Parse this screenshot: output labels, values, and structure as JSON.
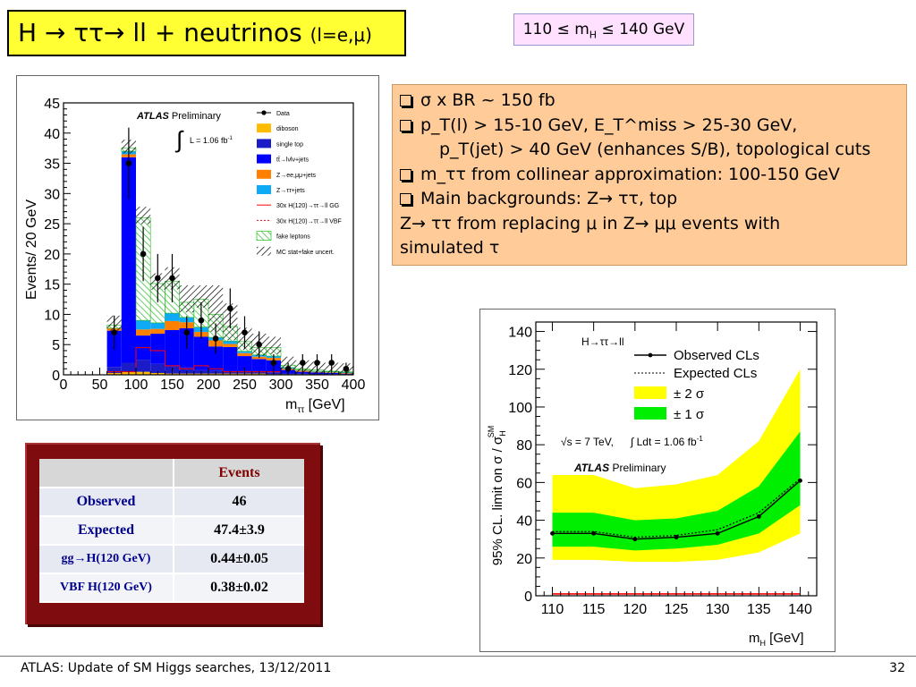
{
  "title": {
    "main": "H → ττ→ ll + neutrinos",
    "paren": "(l=e,μ)"
  },
  "mass_range": {
    "left": "110 ≤ m",
    "sub": "H",
    "right": " ≤ 140 GeV"
  },
  "notes": {
    "line1": "σ x BR ~ 150 fb",
    "line2": "p_T(l) > 15-10 GeV, E_T^miss > 25-30 GeV,",
    "line3": "p_T(jet) > 40 GeV (enhances S/B), topological cuts",
    "line4": "m_ττ from collinear approximation: 100-150 GeV",
    "line5": "Main backgrounds: Z→ ττ, top",
    "line6": "Z→ ττ from replacing μ in Z→ μμ events with",
    "line7": "simulated τ"
  },
  "table": {
    "header": "Events",
    "rows": [
      {
        "label": "Observed",
        "value": "46"
      },
      {
        "label": "Expected",
        "value": "47.4±3.9"
      },
      {
        "label": "gg→H(120 GeV)",
        "value": "0.44±0.05"
      },
      {
        "label": "VBF H(120 GeV)",
        "value": "0.38±0.02"
      }
    ]
  },
  "footer": {
    "left": "ATLAS: Update of SM Higgs searches, 13/12/2011",
    "page": "32"
  },
  "chart_data": [
    {
      "type": "bar",
      "stacked": true,
      "atlas": "ATLAS",
      "atlas_tag": "Preliminary",
      "lumi": "L = 1.06 fb",
      "lumi_exp": "-1",
      "xlabel": "m",
      "xlabel_sub": "ττ",
      "xlabel_unit": " [GeV]",
      "ylabel": "Events/ 20 GeV",
      "xlim": [
        0,
        400
      ],
      "ylim": [
        0,
        45
      ],
      "x_ticks": [
        0,
        50,
        100,
        150,
        200,
        250,
        300,
        350,
        400
      ],
      "y_ticks": [
        0,
        5,
        10,
        15,
        20,
        25,
        30,
        35,
        40,
        45
      ],
      "bin_width": 20,
      "bins": [
        {
          "x0": 60,
          "x1": 80,
          "bkg": [
            0.3,
            1.0,
            6.0,
            0.4,
            0.0,
            0.5
          ],
          "total": 9.0
        },
        {
          "x0": 80,
          "x1": 100,
          "bkg": [
            0.5,
            1.5,
            34.0,
            0.5,
            0.5,
            0.5
          ],
          "total": 37.0
        },
        {
          "x0": 100,
          "x1": 120,
          "bkg": [
            0.5,
            2.0,
            4.0,
            1.0,
            1.5,
            17.0
          ],
          "total": 27.0
        },
        {
          "x0": 120,
          "x1": 140,
          "bkg": [
            0.3,
            1.5,
            5.0,
            0.8,
            1.0,
            6.5
          ],
          "total": 16.0
        },
        {
          "x0": 140,
          "x1": 160,
          "bkg": [
            0.2,
            1.2,
            6.0,
            1.5,
            1.3,
            5.3
          ],
          "total": 17.0
        },
        {
          "x0": 160,
          "x1": 180,
          "bkg": [
            0.2,
            1.0,
            6.5,
            1.0,
            0.8,
            2.5
          ],
          "total": 14.0
        },
        {
          "x0": 180,
          "x1": 200,
          "bkg": [
            0.2,
            0.6,
            5.5,
            0.8,
            0.8,
            4.6
          ],
          "total": 14.0
        },
        {
          "x0": 200,
          "x1": 220,
          "bkg": [
            0.2,
            0.5,
            4.0,
            1.0,
            0.5,
            3.8
          ],
          "total": 14.0
        },
        {
          "x0": 220,
          "x1": 240,
          "bkg": [
            0.2,
            0.4,
            4.0,
            0.5,
            0.5,
            2.4
          ],
          "total": 11.0
        },
        {
          "x0": 240,
          "x1": 260,
          "bkg": [
            0.2,
            0.4,
            2.5,
            0.5,
            0.3,
            1.6
          ],
          "total": 7.0
        },
        {
          "x0": 260,
          "x1": 280,
          "bkg": [
            0.2,
            0.4,
            2.0,
            0.4,
            0.3,
            1.2
          ],
          "total": 6.0
        },
        {
          "x0": 280,
          "x1": 300,
          "bkg": [
            0.1,
            0.3,
            2.0,
            0.4,
            0.3,
            1.4
          ],
          "total": 5.5
        },
        {
          "x0": 300,
          "x1": 320,
          "bkg": [
            0.1,
            0.2,
            0.5,
            0.2,
            0.2,
            0.4
          ],
          "total": 2.0
        },
        {
          "x0": 320,
          "x1": 340,
          "bkg": [
            0.1,
            0.1,
            0.3,
            0.2,
            0.1,
            0.2
          ],
          "total": 1.2
        },
        {
          "x0": 340,
          "x1": 360,
          "bkg": [
            0.0,
            0.1,
            0.3,
            0.1,
            0.1,
            0.2
          ],
          "total": 1.0
        },
        {
          "x0": 360,
          "x1": 380,
          "bkg": [
            0.0,
            0.1,
            0.2,
            0.1,
            0.1,
            0.1
          ],
          "total": 0.8
        },
        {
          "x0": 380,
          "x1": 400,
          "bkg": [
            0.0,
            0.1,
            0.1,
            0.1,
            0.1,
            0.1
          ],
          "total": 0.6
        }
      ],
      "bkg_names": [
        "diboson",
        "single top",
        "tt̄→lνlν+jets",
        "Z→ee,μμ+jets",
        "Z→ττ+jets",
        "fake leptons"
      ],
      "signal_gg": [
        [
          60,
          0.5
        ],
        [
          80,
          0.5
        ],
        [
          100,
          4.5
        ],
        [
          120,
          4.0
        ],
        [
          140,
          1.5
        ],
        [
          160,
          1.0
        ],
        [
          180,
          1.5
        ],
        [
          200,
          1.0
        ],
        [
          220,
          0.5
        ],
        [
          240,
          0.5
        ],
        [
          260,
          0.5
        ],
        [
          300,
          0.0
        ]
      ],
      "data": [
        {
          "x": 70,
          "y": 7,
          "err": 2.8
        },
        {
          "x": 90,
          "y": 35,
          "err": 5.9
        },
        {
          "x": 110,
          "y": 20,
          "err": 4.5
        },
        {
          "x": 130,
          "y": 16,
          "err": 4.0
        },
        {
          "x": 150,
          "y": 16,
          "err": 4.0
        },
        {
          "x": 170,
          "y": 7,
          "err": 2.7
        },
        {
          "x": 190,
          "y": 9,
          "err": 3.0
        },
        {
          "x": 210,
          "y": 6,
          "err": 2.5
        },
        {
          "x": 230,
          "y": 11,
          "err": 3.3
        },
        {
          "x": 250,
          "y": 7,
          "err": 2.7
        },
        {
          "x": 270,
          "y": 5,
          "err": 2.2
        },
        {
          "x": 290,
          "y": 2,
          "err": 1.4
        },
        {
          "x": 310,
          "y": 1,
          "err": 1.0
        },
        {
          "x": 330,
          "y": 2,
          "err": 1.4
        },
        {
          "x": 350,
          "y": 2,
          "err": 1.4
        },
        {
          "x": 370,
          "y": 2,
          "err": 1.4
        },
        {
          "x": 390,
          "y": 1,
          "err": 1.0
        }
      ],
      "legend": {
        "placement": "top-right",
        "entries": [
          {
            "label": "Data",
            "kind": "data"
          },
          {
            "label": "diboson",
            "kind": "fill",
            "color": "#ffbb00"
          },
          {
            "label": "single top",
            "kind": "fill",
            "color": "#1b1bc7"
          },
          {
            "label": "tt̄→lνlν+jets",
            "kind": "fill",
            "color": "#0000ff"
          },
          {
            "label": "Z→ee,μμ+jets",
            "kind": "fill",
            "color": "#ff7f00"
          },
          {
            "label": "Z→ττ+jets",
            "kind": "fill",
            "color": "#0faaf6"
          },
          {
            "label": "30x H(120)→ττ→ll GG",
            "kind": "line",
            "color": "#ff0000"
          },
          {
            "label": "30x H(120)→ττ→ll VBF",
            "kind": "dashed",
            "color": "#ff0000"
          },
          {
            "label": "fake leptons",
            "kind": "hatch-green"
          },
          {
            "label": "MC stat+fake uncert.",
            "kind": "hatch-black"
          }
        ]
      }
    },
    {
      "type": "line",
      "ylabel": "95% CL. limit on σ / σ",
      "ylabel_sub": "H",
      "ylabel_sup": "SM",
      "xlabel": "m",
      "xlabel_sub": "H",
      "xlabel_unit": " [GeV]",
      "xlim": [
        108,
        142
      ],
      "ylim": [
        0,
        145
      ],
      "x_ticks": [
        110,
        115,
        120,
        125,
        130,
        135,
        140
      ],
      "y_ticks": [
        0,
        20,
        40,
        60,
        80,
        100,
        120,
        140
      ],
      "process": "H→ττ→ll",
      "energy": "√s = 7 TeV,",
      "lumi": "∫ Ldt = 1.06 fb",
      "lumi_exp": "-1",
      "atlas": "ATLAS",
      "atlas_tag": "Preliminary",
      "x": [
        110,
        115,
        120,
        125,
        130,
        135,
        140
      ],
      "observed": [
        33,
        33,
        30,
        31,
        33,
        42,
        61
      ],
      "expected": [
        34,
        34,
        31,
        32,
        35,
        44,
        62
      ],
      "band1_low": [
        26,
        26,
        24,
        25,
        27,
        33,
        48
      ],
      "band1_high": [
        44,
        44,
        40,
        41,
        45,
        58,
        87
      ],
      "band2_low": [
        19,
        19,
        18,
        18,
        19,
        23,
        33
      ],
      "band2_high": [
        64,
        64,
        57,
        59,
        64,
        82,
        120
      ],
      "sm_line": 1,
      "legend": {
        "placement": "top",
        "entries": [
          {
            "label": "Observed CLs",
            "kind": "solid"
          },
          {
            "label": "Expected CLs",
            "kind": "dotted"
          },
          {
            "label": "± 2 σ",
            "kind": "fill",
            "color": "#ffff00"
          },
          {
            "label": "± 1 σ",
            "kind": "fill",
            "color": "#00ee00"
          }
        ]
      }
    }
  ]
}
